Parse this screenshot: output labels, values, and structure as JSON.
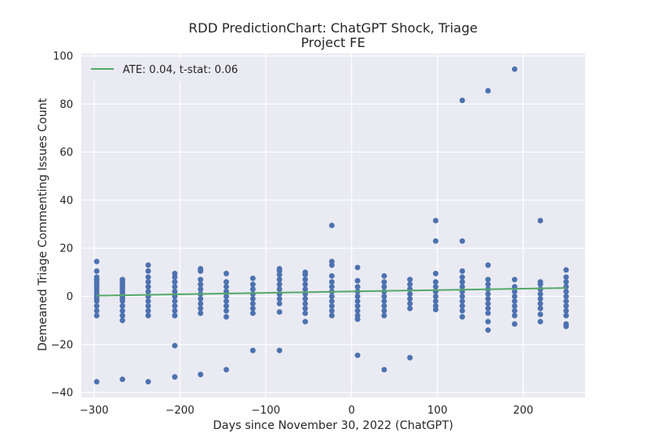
{
  "chart_data": {
    "type": "scatter",
    "title": "RDD PredictionChart: ChatGPT Shock, Triage",
    "subtitle": "Project FE",
    "xlabel": "Days since November 30, 2022 (ChatGPT)",
    "ylabel": "Demeaned Triage Commenting Issues Count",
    "xlim": [
      -315,
      272
    ],
    "ylim": [
      -42,
      101
    ],
    "x_ticks": [
      -300,
      -200,
      -100,
      0,
      100,
      200
    ],
    "x_tick_labels": [
      "−300",
      "−200",
      "−100",
      "0",
      "100",
      "200"
    ],
    "y_ticks": [
      -40,
      -20,
      0,
      20,
      40,
      60,
      80,
      100
    ],
    "y_tick_labels": [
      "−40",
      "−20",
      "0",
      "20",
      "40",
      "60",
      "80",
      "100"
    ],
    "grid": true,
    "legend_position": "top-left",
    "background_color": "#eaeaf2",
    "point_color": "#4c72b0",
    "line_color": "#55a868",
    "series": [
      {
        "type": "scatter",
        "points": [
          [
            -297,
            -35.5
          ],
          [
            -297,
            -8
          ],
          [
            -297,
            -6
          ],
          [
            -297,
            -4
          ],
          [
            -297,
            -2
          ],
          [
            -297,
            -1
          ],
          [
            -297,
            0
          ],
          [
            -297,
            1
          ],
          [
            -297,
            2
          ],
          [
            -297,
            3
          ],
          [
            -297,
            4
          ],
          [
            -297,
            5
          ],
          [
            -297,
            6
          ],
          [
            -297,
            7
          ],
          [
            -297,
            8
          ],
          [
            -297,
            10.5
          ],
          [
            -297,
            14.5
          ],
          [
            -267,
            -34.5
          ],
          [
            -267,
            -10
          ],
          [
            -267,
            -8
          ],
          [
            -267,
            -6
          ],
          [
            -267,
            -4
          ],
          [
            -267,
            -2
          ],
          [
            -267,
            -1
          ],
          [
            -267,
            0
          ],
          [
            -267,
            1
          ],
          [
            -267,
            2
          ],
          [
            -267,
            3
          ],
          [
            -267,
            4
          ],
          [
            -267,
            5
          ],
          [
            -267,
            6
          ],
          [
            -267,
            7
          ],
          [
            -237,
            -35.5
          ],
          [
            -237,
            -8
          ],
          [
            -237,
            -6
          ],
          [
            -237,
            -4
          ],
          [
            -237,
            -2
          ],
          [
            -237,
            0
          ],
          [
            -237,
            2
          ],
          [
            -237,
            4
          ],
          [
            -237,
            6
          ],
          [
            -237,
            8
          ],
          [
            -237,
            10.5
          ],
          [
            -237,
            13
          ],
          [
            -206,
            -33.5
          ],
          [
            -206,
            -20.5
          ],
          [
            -206,
            -8
          ],
          [
            -206,
            -6
          ],
          [
            -206,
            -4
          ],
          [
            -206,
            -2
          ],
          [
            -206,
            0
          ],
          [
            -206,
            2
          ],
          [
            -206,
            4
          ],
          [
            -206,
            6
          ],
          [
            -206,
            8
          ],
          [
            -206,
            9.5
          ],
          [
            -176,
            -32.5
          ],
          [
            -176,
            -7
          ],
          [
            -176,
            -5
          ],
          [
            -176,
            -3
          ],
          [
            -176,
            -1
          ],
          [
            -176,
            1
          ],
          [
            -176,
            3
          ],
          [
            -176,
            5
          ],
          [
            -176,
            7
          ],
          [
            -176,
            10.5
          ],
          [
            -176,
            11.5
          ],
          [
            -146,
            -30.5
          ],
          [
            -146,
            -8.5
          ],
          [
            -146,
            -6
          ],
          [
            -146,
            -4
          ],
          [
            -146,
            -2
          ],
          [
            -146,
            0
          ],
          [
            -146,
            2
          ],
          [
            -146,
            4
          ],
          [
            -146,
            6
          ],
          [
            -146,
            9.5
          ],
          [
            -115,
            -22.5
          ],
          [
            -115,
            -7
          ],
          [
            -115,
            -5
          ],
          [
            -115,
            -3
          ],
          [
            -115,
            -1
          ],
          [
            -115,
            1
          ],
          [
            -115,
            3
          ],
          [
            -115,
            5
          ],
          [
            -115,
            7.5
          ],
          [
            -84,
            -22.5
          ],
          [
            -84,
            -6.5
          ],
          [
            -84,
            -3
          ],
          [
            -84,
            -1
          ],
          [
            -84,
            1
          ],
          [
            -84,
            3
          ],
          [
            -84,
            5
          ],
          [
            -84,
            7
          ],
          [
            -84,
            9
          ],
          [
            -84,
            10.5
          ],
          [
            -84,
            11.5
          ],
          [
            -54,
            -10.5
          ],
          [
            -54,
            -7
          ],
          [
            -54,
            -5
          ],
          [
            -54,
            -3
          ],
          [
            -54,
            -1
          ],
          [
            -54,
            1
          ],
          [
            -54,
            3
          ],
          [
            -54,
            5
          ],
          [
            -54,
            7
          ],
          [
            -54,
            9
          ],
          [
            -54,
            10
          ],
          [
            -23,
            -8
          ],
          [
            -23,
            -6
          ],
          [
            -23,
            -4
          ],
          [
            -23,
            -2
          ],
          [
            -23,
            0
          ],
          [
            -23,
            2
          ],
          [
            -23,
            4
          ],
          [
            -23,
            6
          ],
          [
            -23,
            8.5
          ],
          [
            -23,
            13
          ],
          [
            -23,
            14.5
          ],
          [
            -23,
            29.5
          ],
          [
            7,
            -24.5
          ],
          [
            7,
            -9.5
          ],
          [
            7,
            -8
          ],
          [
            7,
            -6
          ],
          [
            7,
            -4
          ],
          [
            7,
            -2
          ],
          [
            7,
            0
          ],
          [
            7,
            2
          ],
          [
            7,
            4
          ],
          [
            7,
            6.5
          ],
          [
            7,
            12
          ],
          [
            38,
            -30.5
          ],
          [
            38,
            -8
          ],
          [
            38,
            -6
          ],
          [
            38,
            -4
          ],
          [
            38,
            -2
          ],
          [
            38,
            0
          ],
          [
            38,
            2
          ],
          [
            38,
            4
          ],
          [
            38,
            6
          ],
          [
            38,
            8.5
          ],
          [
            68,
            -25.5
          ],
          [
            68,
            -5
          ],
          [
            68,
            -3
          ],
          [
            68,
            -1
          ],
          [
            68,
            1
          ],
          [
            68,
            3
          ],
          [
            68,
            5
          ],
          [
            68,
            7
          ],
          [
            98,
            -5.5
          ],
          [
            98,
            -4
          ],
          [
            98,
            -2
          ],
          [
            98,
            0
          ],
          [
            98,
            2
          ],
          [
            98,
            4
          ],
          [
            98,
            6
          ],
          [
            98,
            9.5
          ],
          [
            98,
            23
          ],
          [
            98,
            31.5
          ],
          [
            129,
            -8.5
          ],
          [
            129,
            -6
          ],
          [
            129,
            -4
          ],
          [
            129,
            -2
          ],
          [
            129,
            0
          ],
          [
            129,
            2
          ],
          [
            129,
            4
          ],
          [
            129,
            6
          ],
          [
            129,
            8
          ],
          [
            129,
            10.5
          ],
          [
            129,
            23
          ],
          [
            129,
            81.5
          ],
          [
            159,
            -14
          ],
          [
            159,
            -10.5
          ],
          [
            159,
            -7
          ],
          [
            159,
            -5
          ],
          [
            159,
            -3
          ],
          [
            159,
            -1
          ],
          [
            159,
            1
          ],
          [
            159,
            3
          ],
          [
            159,
            5
          ],
          [
            159,
            7
          ],
          [
            159,
            13
          ],
          [
            159,
            85.5
          ],
          [
            190,
            -11.5
          ],
          [
            190,
            -8
          ],
          [
            190,
            -6
          ],
          [
            190,
            -4
          ],
          [
            190,
            -2
          ],
          [
            190,
            0
          ],
          [
            190,
            2
          ],
          [
            190,
            4
          ],
          [
            190,
            7
          ],
          [
            190,
            94.5
          ],
          [
            220,
            -10.5
          ],
          [
            220,
            -7.5
          ],
          [
            220,
            -5
          ],
          [
            220,
            -3
          ],
          [
            220,
            -1
          ],
          [
            220,
            1
          ],
          [
            220,
            3
          ],
          [
            220,
            5
          ],
          [
            220,
            6
          ],
          [
            220,
            31.5
          ],
          [
            250,
            -12.5
          ],
          [
            250,
            -11.5
          ],
          [
            250,
            -8
          ],
          [
            250,
            -6
          ],
          [
            250,
            -4
          ],
          [
            250,
            -2
          ],
          [
            250,
            0
          ],
          [
            250,
            2
          ],
          [
            250,
            4
          ],
          [
            250,
            6
          ],
          [
            250,
            8
          ],
          [
            250,
            11
          ]
        ]
      },
      {
        "type": "line",
        "name": "ATE: 0.04, t-stat: 0.06",
        "points": [
          [
            -297,
            0.3
          ],
          [
            250,
            3.5
          ]
        ]
      }
    ]
  }
}
